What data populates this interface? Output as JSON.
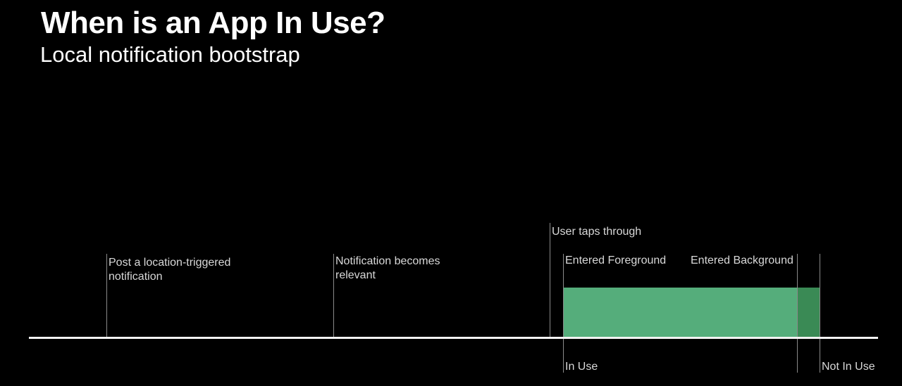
{
  "slide": {
    "title": "When is an App In Use?",
    "subtitle": "Local notification bootstrap"
  },
  "timeline": {
    "events": {
      "post": "Post a location-triggered notification",
      "relevant": "Notification becomes relevant",
      "taps": "User taps through",
      "foreground": "Entered Foreground",
      "background": "Entered Background"
    },
    "states": {
      "in_use": "In Use",
      "not_in_use": "Not In Use"
    }
  },
  "colors": {
    "background": "#000000",
    "in_use_bar": "#55ad7b",
    "transition_bar": "#3a8a55",
    "axis": "#f2f2f2"
  }
}
